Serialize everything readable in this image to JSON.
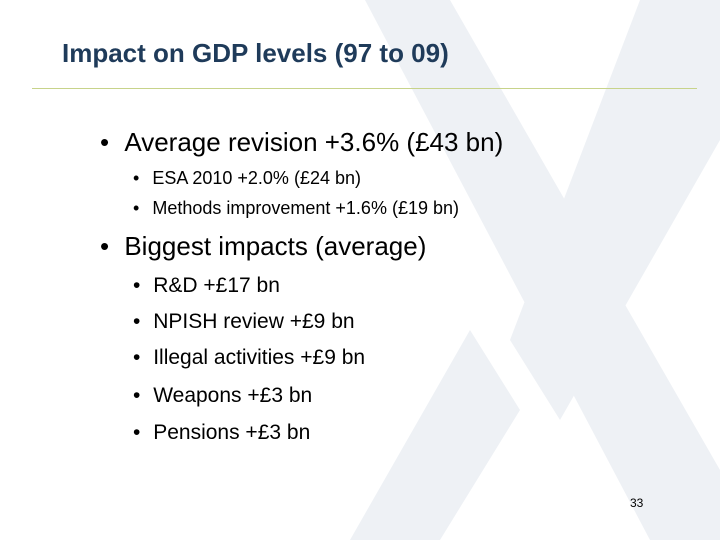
{
  "slide": {
    "title": "Impact on GDP levels (97 to 09)",
    "bullet_glyph": "•",
    "sections": [
      {
        "text": "Average revision +3.6% (£43 bn)",
        "sub": [
          "ESA 2010 +2.0% (£24 bn)",
          "Methods improvement  +1.6% (£19 bn)"
        ]
      },
      {
        "text": "Biggest impacts (average)",
        "sub": [
          "R&D +£17 bn",
          "NPISH review +£9 bn",
          "Illegal activities +£9 bn",
          "Weapons  +£3 bn",
          "Pensions  +£3 bn"
        ]
      }
    ],
    "page_number": "33",
    "colors": {
      "title": "#1f3b5a",
      "rule": "#c7d38a",
      "watermark": "#eef1f5"
    }
  }
}
